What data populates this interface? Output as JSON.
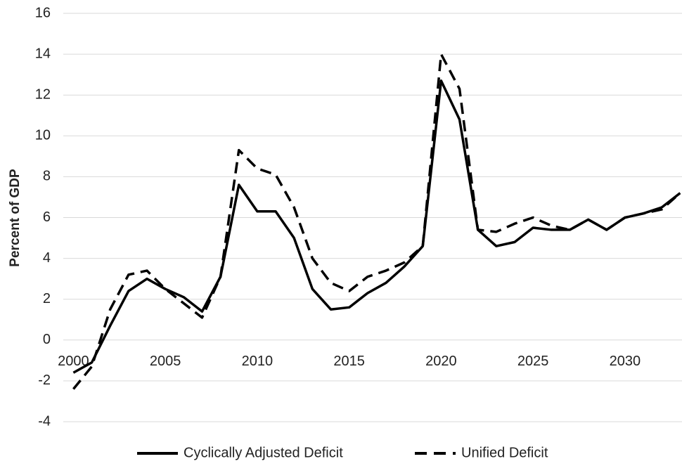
{
  "chart_data": {
    "type": "line",
    "ylabel": "Percent of GDP",
    "x": [
      2000,
      2001,
      2002,
      2003,
      2004,
      2005,
      2006,
      2007,
      2008,
      2009,
      2010,
      2011,
      2012,
      2013,
      2014,
      2015,
      2016,
      2017,
      2018,
      2019,
      2020,
      2021,
      2022,
      2023,
      2024,
      2025,
      2026,
      2027,
      2028,
      2029,
      2030,
      2031,
      2032,
      2033
    ],
    "series": [
      {
        "name": "Cyclically Adjusted Deficit",
        "color": "#000000",
        "dash": "solid",
        "values": [
          -1.6,
          -1.1,
          0.7,
          2.4,
          3.0,
          2.5,
          2.1,
          1.4,
          3.1,
          7.6,
          6.3,
          6.3,
          5.0,
          2.5,
          1.5,
          1.6,
          2.3,
          2.8,
          3.6,
          4.6,
          12.7,
          10.8,
          5.4,
          4.6,
          4.8,
          5.5,
          5.4,
          5.4,
          5.9,
          5.4,
          6.0,
          6.2,
          6.5,
          7.2
        ]
      },
      {
        "name": "Unified Deficit",
        "color": "#000000",
        "dash": "dashed",
        "values": [
          -2.4,
          -1.3,
          1.5,
          3.2,
          3.4,
          2.5,
          1.8,
          1.1,
          3.1,
          9.3,
          8.4,
          8.1,
          6.5,
          4.0,
          2.8,
          2.4,
          3.1,
          3.4,
          3.8,
          4.6,
          14.0,
          12.3,
          5.4,
          5.3,
          5.7,
          6.0,
          5.6,
          5.4,
          5.9,
          5.4,
          6.0,
          6.2,
          6.4,
          7.2
        ]
      }
    ],
    "xlim": [
      1999.45,
      2033.1
    ],
    "xticks": [
      2000,
      2005,
      2010,
      2015,
      2020,
      2025,
      2030
    ],
    "ylim": [
      -4,
      16
    ],
    "yticks": [
      -4,
      -2,
      0,
      2,
      4,
      6,
      8,
      10,
      12,
      14,
      16
    ],
    "grid": true,
    "legend": "bottom"
  }
}
